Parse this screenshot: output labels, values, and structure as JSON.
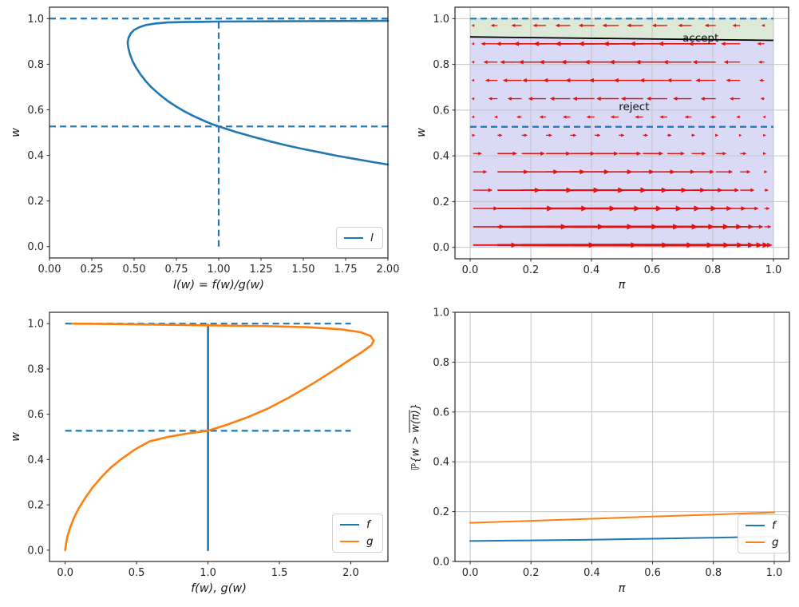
{
  "colors": {
    "blue": "#1f77b4",
    "orange": "#ff7f0e",
    "red": "#e31212",
    "black": "#000000",
    "grid": "#c3c3c3",
    "tick_text": "#262626",
    "accept_fill": "#dde9d7",
    "reject_fill": "#dadaf6"
  },
  "chart_data": [
    {
      "id": "likelihood-ratio",
      "type": "line",
      "xlabel": "l(w) = f(w)/g(w)",
      "ylabel": "w",
      "xlim": [
        0,
        2
      ],
      "ylim": [
        -0.05,
        1.05
      ],
      "grid": false,
      "xticks": {
        "values": [
          0,
          0.25,
          0.5,
          0.75,
          1.0,
          1.25,
          1.5,
          1.75,
          2.0
        ],
        "labels": [
          "0.00",
          "0.25",
          "0.50",
          "0.75",
          "1.00",
          "1.25",
          "1.50",
          "1.75",
          "2.00"
        ]
      },
      "yticks": {
        "values": [
          0,
          0.2,
          0.4,
          0.6,
          0.8,
          1.0
        ],
        "labels": [
          "0.0",
          "0.2",
          "0.4",
          "0.6",
          "0.8",
          "1.0"
        ]
      },
      "dashed": [
        {
          "o": "h",
          "at": 1.0,
          "from": 0,
          "to": 2
        },
        {
          "o": "h",
          "at": 0.527,
          "from": 0,
          "to": 2
        },
        {
          "o": "v",
          "at": 1.0,
          "from": 0,
          "to": 1.0
        }
      ],
      "legend": [
        {
          "label": "l",
          "color": "#1f77b4"
        }
      ],
      "series": [
        {
          "name": "l",
          "color": "#1f77b4",
          "width": 2.6,
          "points": [
            [
              2.0,
              0.36
            ],
            [
              1.9,
              0.372
            ],
            [
              1.8,
              0.385
            ],
            [
              1.7,
              0.398
            ],
            [
              1.6,
              0.413
            ],
            [
              1.5,
              0.428
            ],
            [
              1.4,
              0.444
            ],
            [
              1.3,
              0.462
            ],
            [
              1.2,
              0.482
            ],
            [
              1.1,
              0.503
            ],
            [
              1.0,
              0.527
            ],
            [
              0.95,
              0.54
            ],
            [
              0.9,
              0.556
            ],
            [
              0.85,
              0.573
            ],
            [
              0.8,
              0.592
            ],
            [
              0.75,
              0.614
            ],
            [
              0.7,
              0.638
            ],
            [
              0.65,
              0.667
            ],
            [
              0.6,
              0.7
            ],
            [
              0.57,
              0.725
            ],
            [
              0.54,
              0.753
            ],
            [
              0.51,
              0.787
            ],
            [
              0.49,
              0.815
            ],
            [
              0.475,
              0.845
            ],
            [
              0.465,
              0.875
            ],
            [
              0.462,
              0.895
            ],
            [
              0.467,
              0.915
            ],
            [
              0.48,
              0.935
            ],
            [
              0.5,
              0.95
            ],
            [
              0.53,
              0.962
            ],
            [
              0.57,
              0.972
            ],
            [
              0.62,
              0.978
            ],
            [
              0.7,
              0.983
            ],
            [
              0.8,
              0.985
            ],
            [
              1.0,
              0.987
            ],
            [
              1.3,
              0.988
            ],
            [
              1.6,
              0.989
            ],
            [
              2.0,
              0.99
            ]
          ]
        }
      ]
    },
    {
      "id": "phase-field",
      "type": "quiver",
      "xlabel": "π",
      "ylabel": "w",
      "xlim": [
        -0.05,
        1.05
      ],
      "ylim": [
        -0.05,
        1.05
      ],
      "grid": true,
      "xticks": {
        "values": [
          0,
          0.2,
          0.4,
          0.6,
          0.8,
          1.0
        ],
        "labels": [
          "0.0",
          "0.2",
          "0.4",
          "0.6",
          "0.8",
          "1.0"
        ]
      },
      "yticks": {
        "values": [
          0,
          0.2,
          0.4,
          0.6,
          0.8,
          1.0
        ],
        "labels": [
          "0.0",
          "0.2",
          "0.4",
          "0.6",
          "0.8",
          "1.0"
        ]
      },
      "regions": [
        {
          "name": "accept-region",
          "color": "#dde9d7",
          "polygon": [
            [
              0,
              0.92
            ],
            [
              1,
              0.905
            ],
            [
              1,
              1.0
            ],
            [
              0,
              1.0
            ]
          ]
        },
        {
          "name": "reject-region",
          "color": "#dadaf6",
          "polygon": [
            [
              0,
              0.0
            ],
            [
              1,
              0.0
            ],
            [
              1,
              0.905
            ],
            [
              0,
              0.92
            ]
          ]
        }
      ],
      "boundary": {
        "color": "#000000",
        "width": 1.8,
        "points": [
          [
            0,
            0.92
          ],
          [
            1,
            0.905
          ]
        ]
      },
      "dashed": [
        {
          "o": "h",
          "at": 1.0,
          "from": 0,
          "to": 1
        },
        {
          "o": "h",
          "at": 0.527,
          "from": 0,
          "to": 1
        }
      ],
      "annotations": [
        {
          "text": "accept",
          "xy": [
            0.7,
            0.915
          ]
        },
        {
          "text": "reject",
          "xy": [
            0.49,
            0.615
          ]
        }
      ],
      "quiver": {
        "color": "#e31212",
        "x_grid": [
          0.01,
          0.09,
          0.17,
          0.25,
          0.33,
          0.41,
          0.49,
          0.57,
          0.65,
          0.73,
          0.81,
          0.89,
          0.97
        ],
        "rows": [
          {
            "w": 0.01,
            "amp": 0.42
          },
          {
            "w": 0.09,
            "amp": 0.3
          },
          {
            "w": 0.17,
            "amp": 0.24
          },
          {
            "w": 0.25,
            "amp": 0.185
          },
          {
            "w": 0.33,
            "amp": 0.135
          },
          {
            "w": 0.41,
            "amp": 0.085
          },
          {
            "w": 0.49,
            "amp": 0.022
          },
          {
            "w": 0.57,
            "amp": -0.028
          },
          {
            "w": 0.65,
            "amp": -0.075
          },
          {
            "w": 0.73,
            "amp": -0.1
          },
          {
            "w": 0.81,
            "amp": -0.115
          },
          {
            "w": 0.89,
            "amp": -0.135
          },
          {
            "w": 0.97,
            "amp": -0.055
          }
        ],
        "profile": {
          "pos": {
            "scale": 2.2,
            "a": 0.4,
            "b": 0.95
          },
          "neg": {
            "scale": 3.0,
            "power": 0.8
          }
        }
      }
    },
    {
      "id": "densities",
      "type": "line",
      "xlabel": "f(w), g(w)",
      "ylabel": "w",
      "xlim": [
        -0.11,
        2.26
      ],
      "ylim": [
        -0.05,
        1.05
      ],
      "grid": false,
      "xticks": {
        "values": [
          0,
          0.5,
          1.0,
          1.5,
          2.0
        ],
        "labels": [
          "0.0",
          "0.5",
          "1.0",
          "1.5",
          "2.0"
        ]
      },
      "yticks": {
        "values": [
          0,
          0.2,
          0.4,
          0.6,
          0.8,
          1.0
        ],
        "labels": [
          "0.0",
          "0.2",
          "0.4",
          "0.6",
          "0.8",
          "1.0"
        ]
      },
      "dashed": [
        {
          "o": "h",
          "at": 1.0,
          "from": 0,
          "to": 2.0
        },
        {
          "o": "h",
          "at": 0.527,
          "from": 0,
          "to": 2.0
        }
      ],
      "legend": [
        {
          "label": "f",
          "color": "#1f77b4"
        },
        {
          "label": "g",
          "color": "#ff7f0e"
        }
      ],
      "series": [
        {
          "name": "f",
          "color": "#1f77b4",
          "width": 2.6,
          "points": [
            [
              1.0,
              0.0
            ],
            [
              1.0,
              0.995
            ]
          ]
        },
        {
          "name": "g",
          "color": "#ff7f0e",
          "width": 2.6,
          "points": [
            [
              0.0,
              0.0
            ],
            [
              0.005,
              0.025
            ],
            [
              0.015,
              0.06
            ],
            [
              0.035,
              0.1
            ],
            [
              0.06,
              0.14
            ],
            [
              0.095,
              0.185
            ],
            [
              0.14,
              0.23
            ],
            [
              0.19,
              0.275
            ],
            [
              0.25,
              0.32
            ],
            [
              0.32,
              0.365
            ],
            [
              0.4,
              0.405
            ],
            [
              0.49,
              0.445
            ],
            [
              0.59,
              0.48
            ],
            [
              0.72,
              0.5
            ],
            [
              0.86,
              0.515
            ],
            [
              1.0,
              0.527
            ],
            [
              1.13,
              0.553
            ],
            [
              1.27,
              0.585
            ],
            [
              1.42,
              0.625
            ],
            [
              1.57,
              0.675
            ],
            [
              1.72,
              0.73
            ],
            [
              1.86,
              0.785
            ],
            [
              1.98,
              0.835
            ],
            [
              2.08,
              0.875
            ],
            [
              2.145,
              0.905
            ],
            [
              2.16,
              0.925
            ],
            [
              2.14,
              0.945
            ],
            [
              2.07,
              0.962
            ],
            [
              1.93,
              0.975
            ],
            [
              1.7,
              0.984
            ],
            [
              1.4,
              0.989
            ],
            [
              1.05,
              0.992
            ],
            [
              0.7,
              0.995
            ],
            [
              0.35,
              0.998
            ],
            [
              0.05,
              1.0
            ]
          ]
        }
      ]
    },
    {
      "id": "tail-probability",
      "type": "line",
      "xlabel": "π",
      "ylabel": "ℙ{w > w(π)}",
      "ylabel_parts": {
        "prefix": "ℙ{w > ",
        "over": "w(π)",
        "suffix": "}"
      },
      "xlim": [
        -0.05,
        1.05
      ],
      "ylim": [
        0,
        1
      ],
      "grid": true,
      "xticks": {
        "values": [
          0,
          0.2,
          0.4,
          0.6,
          0.8,
          1.0
        ],
        "labels": [
          "0.0",
          "0.2",
          "0.4",
          "0.6",
          "0.8",
          "1.0"
        ]
      },
      "yticks": {
        "values": [
          0,
          0.2,
          0.4,
          0.6,
          0.8,
          1.0
        ],
        "labels": [
          "0.0",
          "0.2",
          "0.4",
          "0.6",
          "0.8",
          "1.0"
        ]
      },
      "dashed": [],
      "legend": [
        {
          "label": "f",
          "color": "#1f77b4"
        },
        {
          "label": "g",
          "color": "#ff7f0e"
        }
      ],
      "series": [
        {
          "name": "f",
          "color": "#1f77b4",
          "width": 2,
          "points": [
            [
              0,
              0.082
            ],
            [
              0.2,
              0.0845
            ],
            [
              0.4,
              0.0875
            ],
            [
              0.6,
              0.0915
            ],
            [
              0.8,
              0.0955
            ],
            [
              1.0,
              0.1
            ]
          ]
        },
        {
          "name": "g",
          "color": "#ff7f0e",
          "width": 2,
          "points": [
            [
              0,
              0.155
            ],
            [
              0.2,
              0.163
            ],
            [
              0.4,
              0.1715
            ],
            [
              0.6,
              0.18
            ],
            [
              0.8,
              0.188
            ],
            [
              1.0,
              0.197
            ]
          ]
        }
      ]
    }
  ]
}
